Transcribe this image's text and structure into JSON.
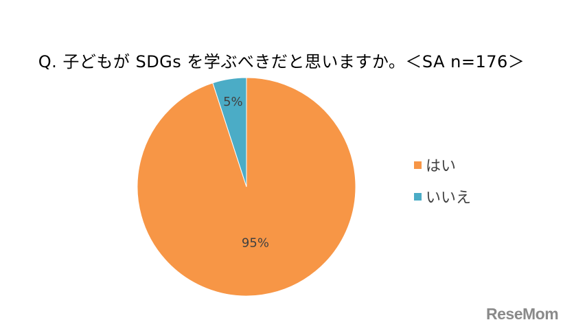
{
  "chart_data": {
    "type": "pie",
    "title": "Q. 子どもが SDGs を学ぶべきだと思いますか。＜SA n=176＞",
    "categories": [
      "はい",
      "いいえ"
    ],
    "values": [
      95,
      5
    ],
    "value_labels": [
      "95%",
      "5%"
    ],
    "colors": [
      "#F79646",
      "#4BACC6"
    ],
    "legend_position": "right"
  },
  "watermark": "ReseMom"
}
